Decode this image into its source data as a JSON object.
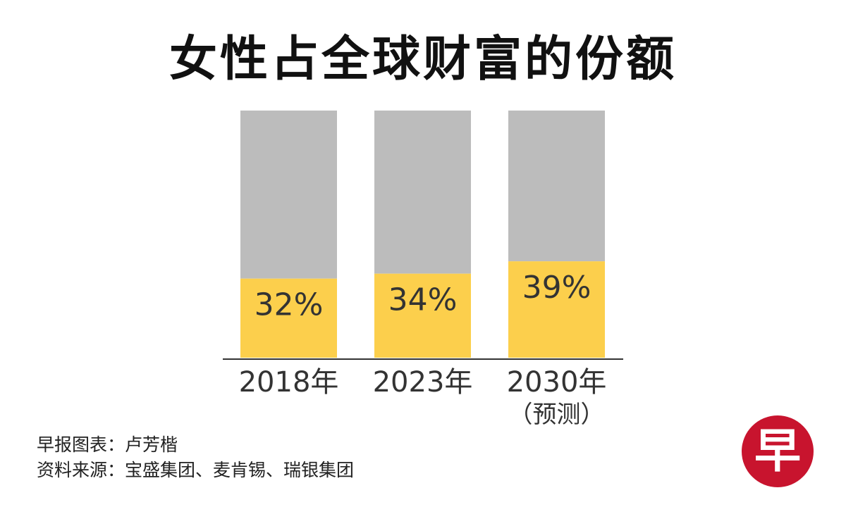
{
  "chart_data": {
    "type": "bar",
    "title": "女性占全球财富的份额",
    "categories": [
      "2018年",
      "2023年",
      "2030年"
    ],
    "category_notes": [
      "",
      "",
      "（预测）"
    ],
    "values": [
      32,
      34,
      39
    ],
    "value_labels": [
      "32%",
      "34%",
      "39%"
    ],
    "ylim": [
      0,
      100
    ],
    "colors": {
      "share": "#fccf4c",
      "remainder": "#bcbcbc",
      "axis": "#333333"
    },
    "grid": false
  },
  "credits": {
    "line1": "早报图表：卢芳楷",
    "line2": "资料来源：宝盛集团、麦肯锡、瑞银集团"
  },
  "logo": {
    "text": "早",
    "color": "#c8142e"
  }
}
